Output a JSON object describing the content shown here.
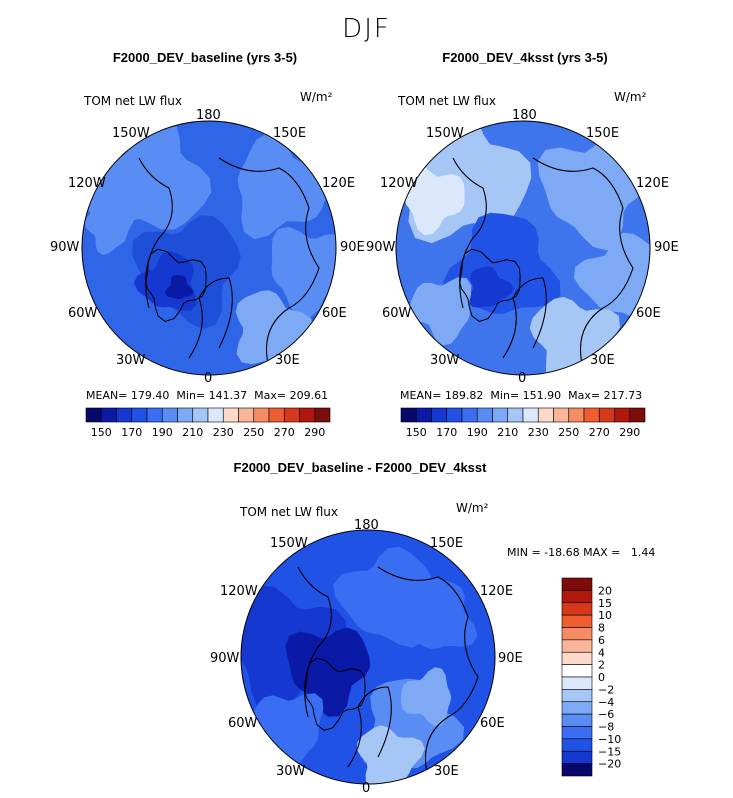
{
  "figure": {
    "title": "DJF"
  },
  "panels": [
    {
      "title": "F2000_DEV_baseline (yrs 3-5)",
      "field_label": "TOM net LW flux",
      "units": "W/m²",
      "lon_labels": [
        "180",
        "150E",
        "120E",
        "90E",
        "60E",
        "30E",
        "0",
        "30W",
        "60W",
        "90W",
        "120W",
        "150W"
      ],
      "stats": {
        "mean_label": "MEAN=",
        "mean": "179.40",
        "min_label": "Min=",
        "min": "141.37",
        "max_label": "Max=",
        "max": "209.61"
      },
      "colorbar_ticks": [
        "150",
        "170",
        "190",
        "210",
        "230",
        "250",
        "270",
        "290"
      ]
    },
    {
      "title": "F2000_DEV_4ksst (yrs 3-5)",
      "field_label": "TOM net LW flux",
      "units": "W/m²",
      "lon_labels": [
        "180",
        "150E",
        "120E",
        "90E",
        "60E",
        "30E",
        "0",
        "30W",
        "60W",
        "90W",
        "120W",
        "150W"
      ],
      "stats": {
        "mean_label": "MEAN=",
        "mean": "189.82",
        "min_label": "Min=",
        "min": "151.90",
        "max_label": "Max=",
        "max": "217.73"
      },
      "colorbar_ticks": [
        "150",
        "170",
        "190",
        "210",
        "230",
        "250",
        "270",
        "290"
      ]
    },
    {
      "title": "F2000_DEV_baseline - F2000_DEV_4ksst",
      "field_label": "TOM net LW flux",
      "units": "W/m²",
      "lon_labels": [
        "180",
        "150E",
        "120E",
        "90E",
        "60E",
        "30E",
        "0",
        "30W",
        "60W",
        "90W",
        "120W",
        "150W"
      ],
      "stats_line": "MIN = -18.68 MAX =   1.44",
      "colorbar_ticks": [
        "20",
        "15",
        "10",
        "8",
        "6",
        "4",
        "2",
        "0",
        "−2",
        "−4",
        "−6",
        "−8",
        "−10",
        "−15",
        "−20"
      ]
    }
  ],
  "chart_data": [
    {
      "type": "heatmap",
      "projection": "north polar stereographic",
      "title": "F2000_DEV_baseline (yrs 3-5)",
      "variable": "TOM net LW flux",
      "units": "W/m^2",
      "mean": 179.4,
      "min": 141.37,
      "max": 209.61,
      "contour_levels": [
        150,
        160,
        170,
        180,
        190,
        200,
        210,
        220,
        230,
        240,
        250,
        260,
        270,
        280,
        290
      ],
      "colorbar_ticks": [
        150,
        170,
        190,
        210,
        230,
        250,
        270,
        290
      ],
      "colors": [
        "#08086b",
        "#0a1aa6",
        "#1438d0",
        "#2152e6",
        "#3a6ef2",
        "#5a8df4",
        "#7eaaf5",
        "#a6c6f6",
        "#dbe8fb",
        "#fcd9c8",
        "#f8b59a",
        "#f58c63",
        "#ee5e31",
        "#d8381a",
        "#b0180e",
        "#7d0c0c"
      ]
    },
    {
      "type": "heatmap",
      "projection": "north polar stereographic",
      "title": "F2000_DEV_4ksst (yrs 3-5)",
      "variable": "TOM net LW flux",
      "units": "W/m^2",
      "mean": 189.82,
      "min": 151.9,
      "max": 217.73,
      "contour_levels": [
        150,
        160,
        170,
        180,
        190,
        200,
        210,
        220,
        230,
        240,
        250,
        260,
        270,
        280,
        290
      ],
      "colorbar_ticks": [
        150,
        170,
        190,
        210,
        230,
        250,
        270,
        290
      ],
      "colors": [
        "#08086b",
        "#0a1aa6",
        "#1438d0",
        "#2152e6",
        "#3a6ef2",
        "#5a8df4",
        "#7eaaf5",
        "#a6c6f6",
        "#dbe8fb",
        "#fcd9c8",
        "#f8b59a",
        "#f58c63",
        "#ee5e31",
        "#d8381a",
        "#b0180e",
        "#7d0c0c"
      ]
    },
    {
      "type": "heatmap",
      "projection": "north polar stereographic",
      "title": "F2000_DEV_baseline - F2000_DEV_4ksst",
      "variable": "TOM net LW flux",
      "units": "W/m^2",
      "min": -18.68,
      "max": 1.44,
      "contour_levels": [
        -20,
        -15,
        -10,
        -8,
        -6,
        -4,
        -2,
        0,
        2,
        4,
        6,
        8,
        10,
        15,
        20
      ],
      "colorbar_ticks": [
        20,
        15,
        10,
        8,
        6,
        4,
        2,
        0,
        -2,
        -4,
        -6,
        -8,
        -10,
        -15,
        -20
      ],
      "colors": [
        "#7d0c0c",
        "#b0180e",
        "#d8381a",
        "#ee5e31",
        "#f58c63",
        "#f8b59a",
        "#fcd9c8",
        "#ffffff",
        "#dbe8fb",
        "#a6c6f6",
        "#7eaaf5",
        "#5a8df4",
        "#3a6ef2",
        "#2152e6",
        "#1438d0",
        "#08086b"
      ]
    }
  ]
}
